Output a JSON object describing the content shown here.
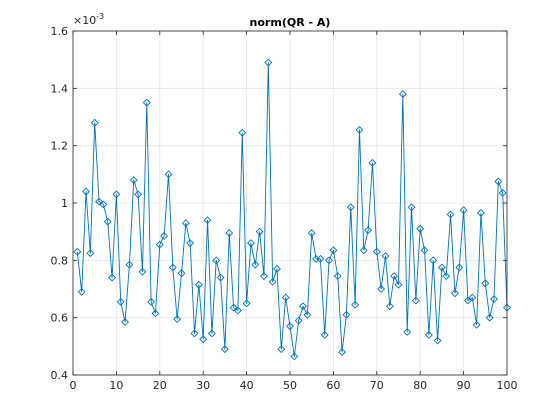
{
  "chart_data": {
    "type": "line",
    "title": "norm(QR - A)",
    "xlabel": "",
    "ylabel": "",
    "xlim": [
      0,
      100
    ],
    "ylim": [
      0.4,
      1.6
    ],
    "y_exponent_label": "×10",
    "y_exponent_power": "-3",
    "xticks": [
      0,
      10,
      20,
      30,
      40,
      50,
      60,
      70,
      80,
      90,
      100
    ],
    "xtick_labels": [
      "0",
      "10",
      "20",
      "30",
      "40",
      "50",
      "60",
      "70",
      "80",
      "90",
      "100"
    ],
    "yticks": [
      0.4,
      0.6,
      0.8,
      1.0,
      1.2,
      1.4,
      1.6
    ],
    "ytick_labels": [
      "0.4",
      "0.6",
      "0.8",
      "1",
      "1.2",
      "1.4",
      "1.6"
    ],
    "grid": true,
    "marker": "diamond",
    "colors": {
      "series": "#0072bd",
      "grid": "#e6e6e6",
      "axis": "#262626"
    },
    "series": [
      {
        "x": [
          1,
          2,
          3,
          4,
          5,
          6,
          7,
          8,
          9,
          10,
          11,
          12,
          13,
          14,
          15,
          16,
          17,
          18,
          19,
          20,
          21,
          22,
          23,
          24,
          25,
          26,
          27,
          28,
          29,
          30,
          31,
          32,
          33,
          34,
          35,
          36,
          37,
          38,
          39,
          40,
          41,
          42,
          43,
          44,
          45,
          46,
          47,
          48,
          49,
          50,
          51,
          52,
          53,
          54,
          55,
          56,
          57,
          58,
          59,
          60,
          61,
          62,
          63,
          64,
          65,
          66,
          67,
          68,
          69,
          70,
          71,
          72,
          73,
          74,
          75,
          76,
          77,
          78,
          79,
          80,
          81,
          82,
          83,
          84,
          85,
          86,
          87,
          88,
          89,
          90,
          91,
          92,
          93,
          94,
          95,
          96,
          97,
          98,
          99,
          100
        ],
        "values": [
          0.83,
          0.69,
          1.04,
          0.825,
          1.28,
          1.005,
          0.995,
          0.935,
          0.74,
          1.03,
          0.655,
          0.585,
          0.785,
          1.08,
          1.03,
          0.76,
          1.35,
          0.655,
          0.615,
          0.855,
          0.885,
          1.1,
          0.775,
          0.595,
          0.755,
          0.93,
          0.86,
          0.545,
          0.715,
          0.525,
          0.94,
          0.545,
          0.8,
          0.74,
          0.49,
          0.895,
          0.635,
          0.625,
          1.245,
          0.65,
          0.86,
          0.785,
          0.9,
          0.745,
          1.49,
          0.725,
          0.77,
          0.49,
          0.67,
          0.57,
          0.465,
          0.59,
          0.64,
          0.61,
          0.895,
          0.805,
          0.805,
          0.54,
          0.8,
          0.835,
          0.745,
          0.48,
          0.61,
          0.985,
          0.645,
          1.255,
          0.835,
          0.905,
          1.14,
          0.83,
          0.7,
          0.815,
          0.64,
          0.745,
          0.715,
          1.38,
          0.55,
          0.985,
          0.66,
          0.91,
          0.835,
          0.54,
          0.8,
          0.52,
          0.775,
          0.745,
          0.96,
          0.685,
          0.775,
          0.975,
          0.66,
          0.67,
          0.575,
          0.965,
          0.72,
          0.6,
          0.665,
          1.075,
          1.035,
          0.635
        ]
      }
    ]
  }
}
